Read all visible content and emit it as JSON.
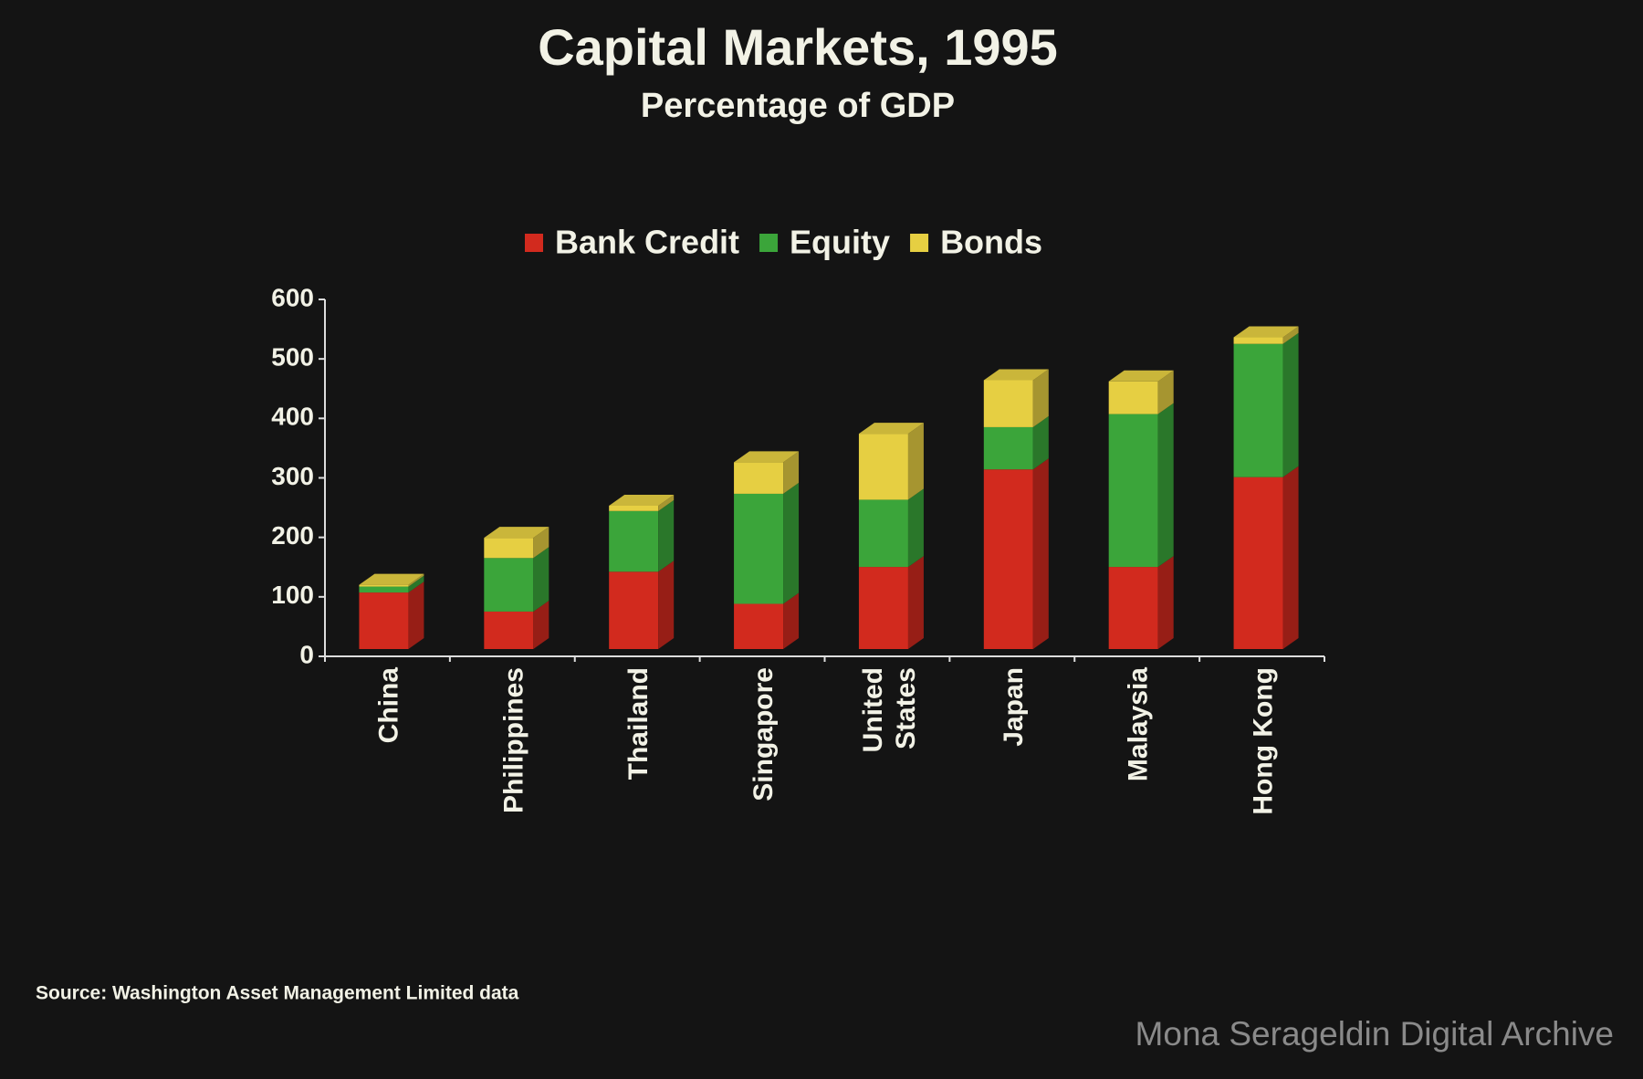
{
  "chart_data": {
    "type": "stacked-bar-3d",
    "title": "Capital Markets, 1995",
    "subtitle": "Percentage of GDP",
    "categories": [
      "China",
      "Philippines",
      "Thailand",
      "Singapore",
      "United\nStates",
      "Japan",
      "Malaysia",
      "Hong Kong"
    ],
    "series": [
      {
        "name": "Bank Credit",
        "color": "#d22a1e",
        "values": [
          95,
          63,
          130,
          76,
          138,
          302,
          138,
          289
        ]
      },
      {
        "name": "Equity",
        "color": "#3ba53a",
        "values": [
          10,
          90,
          102,
          185,
          113,
          71,
          257,
          224
        ]
      },
      {
        "name": "Bonds",
        "color": "#e6cf42",
        "values": [
          3,
          34,
          9,
          53,
          111,
          79,
          55,
          11
        ]
      }
    ],
    "ylim": [
      0,
      600
    ],
    "yticks": [
      0,
      100,
      200,
      300,
      400,
      500,
      600
    ],
    "legend": "top",
    "source": "Source:  Washington Asset Management Limited data",
    "watermark": "Mona Serageldin Digital Archive"
  }
}
